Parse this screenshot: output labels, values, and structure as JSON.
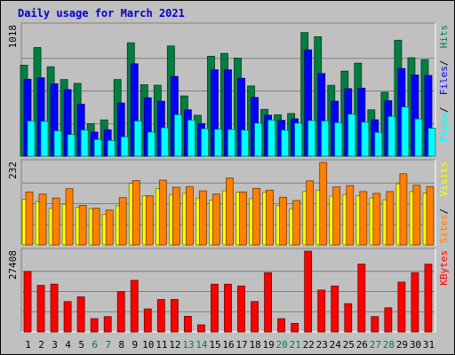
{
  "chart_data": [
    {
      "type": "bar",
      "title": "Daily usage for March 2021",
      "categories": [
        "1",
        "2",
        "3",
        "4",
        "5",
        "6",
        "7",
        "8",
        "9",
        "10",
        "11",
        "12",
        "13",
        "14",
        "15",
        "16",
        "17",
        "18",
        "19",
        "20",
        "21",
        "22",
        "23",
        "24",
        "25",
        "26",
        "27",
        "28",
        "29",
        "30",
        "31"
      ],
      "weekend_days": [
        "6",
        "7",
        "13",
        "14",
        "20",
        "21",
        "27",
        "28"
      ],
      "ymax_label": "1018",
      "ylim": [
        0,
        1018
      ],
      "series": [
        {
          "name": "Hits",
          "color": "#008040",
          "values": [
            710,
            848,
            698,
            598,
            568,
            254,
            283,
            598,
            885,
            558,
            554,
            860,
            470,
            319,
            780,
            802,
            766,
            548,
            365,
            323,
            333,
            965,
            932,
            553,
            664,
            726,
            362,
            499,
            905,
            768,
            753
          ]
        },
        {
          "name": "Files",
          "color": "#0000ff",
          "values": [
            600,
            612,
            565,
            520,
            406,
            188,
            206,
            415,
            721,
            456,
            429,
            622,
            362,
            254,
            674,
            674,
            608,
            458,
            320,
            280,
            291,
            830,
            645,
            429,
            527,
            531,
            284,
            433,
            684,
            634,
            630
          ]
        },
        {
          "name": "Pages",
          "color": "#00ffff",
          "values": [
            275,
            272,
            198,
            169,
            204,
            130,
            122,
            151,
            275,
            188,
            222,
            324,
            282,
            214,
            210,
            208,
            204,
            258,
            282,
            204,
            258,
            278,
            275,
            262,
            328,
            266,
            186,
            310,
            384,
            290,
            218
          ]
        }
      ]
    },
    {
      "type": "bar",
      "ymax_label": "232",
      "ylim": [
        0,
        232
      ],
      "series": [
        {
          "name": "Visits",
          "color": "#ffff00",
          "values": [
            128,
            122,
            103,
            115,
            106,
            102,
            86,
            110,
            173,
            138,
            158,
            141,
            145,
            132,
            126,
            152,
            148,
            130,
            148,
            110,
            102,
            150,
            154,
            137,
            142,
            138,
            132,
            127,
            172,
            150,
            146
          ]
        },
        {
          "name": "Sites",
          "color": "#ff8000",
          "values": [
            149,
            143,
            132,
            158,
            111,
            103,
            98,
            133,
            181,
            138,
            182,
            162,
            164,
            152,
            143,
            188,
            149,
            159,
            154,
            134,
            125,
            180,
            232,
            163,
            167,
            150,
            145,
            150,
            200,
            168,
            164
          ]
        }
      ]
    },
    {
      "type": "bar",
      "ymax_label": "27408",
      "ylim": [
        0,
        27408
      ],
      "series": [
        {
          "name": "KBytes",
          "color": "#ff0000",
          "values": [
            20500,
            15800,
            16200,
            10300,
            11900,
            4500,
            5200,
            13700,
            17500,
            7800,
            11000,
            11000,
            5300,
            2400,
            16200,
            16200,
            15600,
            10300,
            20100,
            4500,
            2900,
            27400,
            14200,
            15600,
            9600,
            23000,
            5200,
            8200,
            16900,
            20100,
            23000
          ]
        }
      ]
    }
  ]
}
